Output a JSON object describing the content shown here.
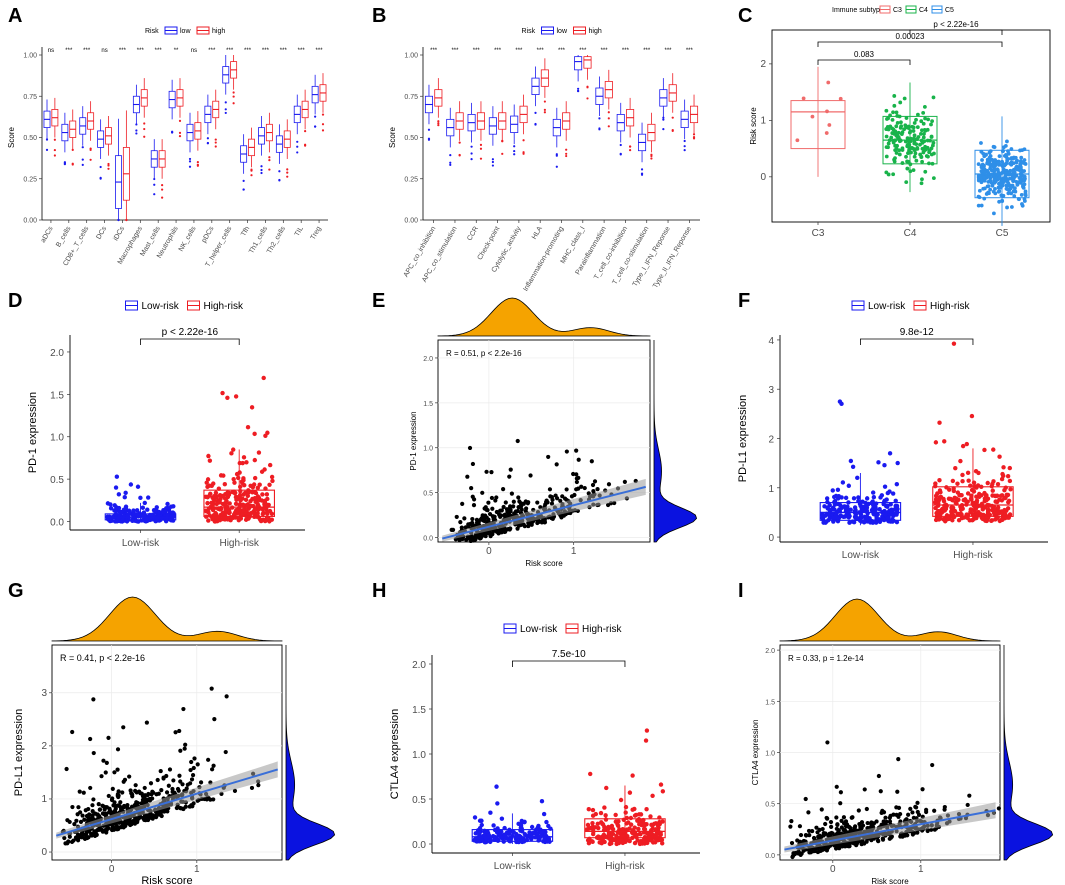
{
  "colors": {
    "low": "#1a1af0",
    "high": "#ee1d23",
    "C3": "#f06b6b",
    "C4": "#18b34a",
    "C5": "#2f8fe8",
    "density": "#f5a300",
    "fit": "#3a6fd8",
    "dens_right": "#0a12e0"
  },
  "chart_data": [
    {
      "panel": "A",
      "type": "boxplot",
      "legend_title": "Risk",
      "legend_labels": [
        "low",
        "high"
      ],
      "ylabel": "Score",
      "ylim": [
        0,
        1.0
      ],
      "yticks": [
        "0.00",
        "0.25",
        "0.50",
        "0.75",
        "1.00"
      ],
      "categories": [
        "aDCs",
        "B_cells",
        "CD8+_T_cells",
        "DCs",
        "iDCs",
        "Macrophages",
        "Mast_cells",
        "Neutrophils",
        "NK_cells",
        "pDCs",
        "T_helper_cells",
        "Tfh",
        "Th1_cells",
        "Th2_cells",
        "TIL",
        "Treg"
      ],
      "significance": [
        "ns",
        "***",
        "***",
        "ns",
        "***",
        "***",
        "***",
        "**",
        "ns",
        "***",
        "***",
        "***",
        "***",
        "***",
        "***",
        "***"
      ],
      "series": [
        {
          "name": "low",
          "medians": [
            0.61,
            0.53,
            0.57,
            0.49,
            0.23,
            0.7,
            0.37,
            0.73,
            0.53,
            0.64,
            0.88,
            0.4,
            0.51,
            0.46,
            0.64,
            0.76
          ]
        },
        {
          "name": "high",
          "medians": [
            0.62,
            0.55,
            0.6,
            0.51,
            0.28,
            0.74,
            0.37,
            0.74,
            0.54,
            0.67,
            0.91,
            0.44,
            0.53,
            0.49,
            0.67,
            0.77
          ]
        }
      ]
    },
    {
      "panel": "B",
      "type": "boxplot",
      "legend_title": "Risk",
      "legend_labels": [
        "low",
        "high"
      ],
      "ylabel": "Score",
      "ylim": [
        0,
        1.0
      ],
      "yticks": [
        "0.00",
        "0.25",
        "0.50",
        "0.75",
        "1.00"
      ],
      "categories": [
        "APC_co_inhibition",
        "APC_co_stimulation",
        "CCR",
        "Check-point",
        "Cytolytic_activity",
        "HLA",
        "Inflammation-promoting",
        "MHC_class_I",
        "Parainflammation",
        "T_cell_co-inhibition",
        "T_cell_co-stimulation",
        "Type_I_IFN_Reponse",
        "Type_II_IFN_Reponse"
      ],
      "significance": [
        "***",
        "***",
        "***",
        "***",
        "***",
        "***",
        "***",
        "***",
        "***",
        "***",
        "***",
        "***",
        "***"
      ],
      "series": [
        {
          "name": "low",
          "medians": [
            0.7,
            0.56,
            0.59,
            0.57,
            0.58,
            0.81,
            0.56,
            0.96,
            0.75,
            0.59,
            0.47,
            0.74,
            0.61
          ]
        },
        {
          "name": "high",
          "medians": [
            0.74,
            0.6,
            0.6,
            0.6,
            0.64,
            0.86,
            0.6,
            0.97,
            0.79,
            0.62,
            0.53,
            0.77,
            0.64
          ]
        }
      ]
    },
    {
      "panel": "C",
      "type": "boxplot",
      "legend_title": "Immune subtype",
      "legend_labels": [
        "C3",
        "C4",
        "C5"
      ],
      "ylabel": "Risk score",
      "ylim": [
        -0.8,
        2.6
      ],
      "yticks": [
        "0",
        "1",
        "2"
      ],
      "categories": [
        "C3",
        "C4",
        "C5"
      ],
      "medians": [
        1.15,
        0.65,
        0.05
      ],
      "comparisons": [
        "0.083",
        "0.00023",
        "p < 2.22e-16"
      ]
    },
    {
      "panel": "D",
      "type": "boxplot",
      "legend_labels": [
        "Low-risk",
        "High-risk"
      ],
      "ylabel": "PD-1 expression",
      "ylim": [
        -0.1,
        2.2
      ],
      "yticks": [
        "0.0",
        "0.5",
        "1.0",
        "1.5",
        "2.0"
      ],
      "categories": [
        "Low-risk",
        "High-risk"
      ],
      "medians": [
        0.05,
        0.17
      ],
      "pvalue": "p < 2.22e-16"
    },
    {
      "panel": "E",
      "type": "scatter",
      "xlabel": "Risk score",
      "ylabel": "PD-1 expression",
      "xlim": [
        -0.6,
        1.9
      ],
      "ylim": [
        -0.05,
        2.2
      ],
      "xticks": [
        "0",
        "1"
      ],
      "yticks": [
        "0.0",
        "0.5",
        "1.0",
        "1.5",
        "2.0"
      ],
      "annotation": "R = 0.51, p < 2.2e-16",
      "fit": {
        "intercept": 0.12,
        "slope": 0.24
      }
    },
    {
      "panel": "F",
      "type": "boxplot",
      "legend_labels": [
        "Low-risk",
        "High-risk"
      ],
      "ylabel": "PD-L1 expression",
      "ylim": [
        -0.1,
        4.1
      ],
      "yticks": [
        "0",
        "1",
        "2",
        "3",
        "4"
      ],
      "categories": [
        "Low-risk",
        "High-risk"
      ],
      "medians": [
        0.5,
        0.65
      ],
      "pvalue": "9.8e-12"
    },
    {
      "panel": "G",
      "type": "scatter",
      "xlabel": "Risk score",
      "ylabel": "PD-L1 expression",
      "xlim": [
        -0.7,
        2.0
      ],
      "ylim": [
        -0.15,
        3.9
      ],
      "xticks": [
        "0",
        "1"
      ],
      "yticks": [
        "0",
        "1",
        "2",
        "3"
      ],
      "annotation": "R = 0.41, p < 2.2e-16",
      "fit": {
        "intercept": 0.62,
        "slope": 0.48
      }
    },
    {
      "panel": "H",
      "type": "boxplot",
      "legend_labels": [
        "Low-risk",
        "High-risk"
      ],
      "ylabel": "CTLA4 expression",
      "ylim": [
        -0.1,
        2.1
      ],
      "yticks": [
        "0.0",
        "0.5",
        "1.0",
        "1.5",
        "2.0"
      ],
      "categories": [
        "Low-risk",
        "High-risk"
      ],
      "medians": [
        0.08,
        0.14
      ],
      "pvalue": "7.5e-10"
    },
    {
      "panel": "I",
      "type": "scatter",
      "xlabel": "Risk score",
      "ylabel": "CTLA4 expression",
      "xlim": [
        -0.6,
        1.9
      ],
      "ylim": [
        -0.05,
        2.05
      ],
      "xticks": [
        "0",
        "1"
      ],
      "yticks": [
        "0.0",
        "0.5",
        "1.0",
        "1.5",
        "2.0"
      ],
      "annotation": "R = 0.33, p = 1.2e-14",
      "fit": {
        "intercept": 0.14,
        "slope": 0.16
      }
    }
  ]
}
